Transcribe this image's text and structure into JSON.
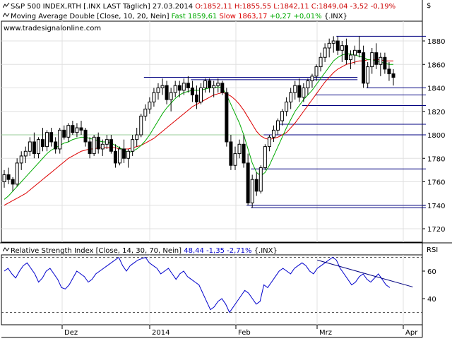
{
  "header": {
    "line1": {
      "name": "S&P 500 INDEX,RTH [.INX LAST Täglich] 27.03.2014",
      "ohlc": "O:1852,11 H:1855,55 L:1842,11 C:1849,04 -3,52 -0,19%"
    },
    "line2": {
      "name": "Moving Average Double [Close, 10, 20, Nein]",
      "fast": "Fast 1859,61",
      "slow": "Slow 1863,17",
      "change": "+0,27 +0,01%",
      "symbol": "{.INX}"
    },
    "website": "www.tradesignalonline.com",
    "currency": "$",
    "rsi_line": {
      "name": "Relative Strength Index [Close, 14, 30, 70, Nein]",
      "value": "48,44",
      "change": "-1,35 -2,71%",
      "symbol": "{.INX}"
    },
    "rsi_axis_label": "RSI"
  },
  "colors": {
    "fast_ma": "#00aa00",
    "slow_ma": "#dd0000",
    "rsi": "#0000cc",
    "candle": "#000000",
    "support_lines": "#000080",
    "trend_line": "#000080",
    "grid": "#e0e0e0",
    "ref_line_1800": "#99cc99",
    "ohlc_text": "#cc0000",
    "rsi_text": "#0000cc"
  },
  "icons": {
    "price_pane": "stepped-line-icon",
    "ma_pane": "line-icon",
    "rsi_pane": "line-icon"
  },
  "chart_data": [
    {
      "type": "candlestick",
      "title": "S&P 500 INDEX,RTH [.INX LAST Täglich] 27.03.2014",
      "x_ticks": [
        "Dez",
        "2014",
        "Feb",
        "Mrz",
        "Apr"
      ],
      "y_ticks": [
        1720,
        1740,
        1760,
        1780,
        1800,
        1820,
        1840,
        1860,
        1880
      ],
      "ylim": [
        1712,
        1890
      ],
      "grid": true,
      "reference_line": 1800,
      "candles": [
        [
          1760,
          1770,
          1755,
          1766
        ],
        [
          1766,
          1772,
          1758,
          1762
        ],
        [
          1762,
          1764,
          1752,
          1758
        ],
        [
          1758,
          1780,
          1756,
          1776
        ],
        [
          1776,
          1786,
          1770,
          1782
        ],
        [
          1782,
          1790,
          1776,
          1786
        ],
        [
          1786,
          1798,
          1782,
          1794
        ],
        [
          1794,
          1802,
          1780,
          1784
        ],
        [
          1784,
          1798,
          1780,
          1796
        ],
        [
          1796,
          1806,
          1786,
          1790
        ],
        [
          1790,
          1804,
          1786,
          1802
        ],
        [
          1802,
          1806,
          1790,
          1794
        ],
        [
          1794,
          1798,
          1784,
          1788
        ],
        [
          1788,
          1806,
          1784,
          1804
        ],
        [
          1804,
          1808,
          1796,
          1798
        ],
        [
          1798,
          1810,
          1794,
          1808
        ],
        [
          1808,
          1812,
          1800,
          1802
        ],
        [
          1802,
          1810,
          1798,
          1806
        ],
        [
          1806,
          1812,
          1800,
          1804
        ],
        [
          1804,
          1806,
          1790,
          1794
        ],
        [
          1794,
          1798,
          1780,
          1784
        ],
        [
          1784,
          1800,
          1782,
          1798
        ],
        [
          1798,
          1802,
          1784,
          1788
        ],
        [
          1788,
          1796,
          1782,
          1792
        ],
        [
          1792,
          1800,
          1788,
          1796
        ],
        [
          1796,
          1800,
          1784,
          1786
        ],
        [
          1786,
          1792,
          1772,
          1776
        ],
        [
          1776,
          1790,
          1774,
          1788
        ],
        [
          1788,
          1796,
          1776,
          1780
        ],
        [
          1780,
          1788,
          1772,
          1786
        ],
        [
          1786,
          1800,
          1782,
          1796
        ],
        [
          1796,
          1806,
          1790,
          1800
        ],
        [
          1800,
          1818,
          1798,
          1816
        ],
        [
          1816,
          1826,
          1812,
          1822
        ],
        [
          1822,
          1832,
          1818,
          1828
        ],
        [
          1828,
          1840,
          1824,
          1836
        ],
        [
          1836,
          1844,
          1830,
          1840
        ],
        [
          1840,
          1848,
          1834,
          1842
        ],
        [
          1842,
          1846,
          1826,
          1830
        ],
        [
          1830,
          1840,
          1820,
          1836
        ],
        [
          1836,
          1846,
          1832,
          1842
        ],
        [
          1842,
          1846,
          1832,
          1838
        ],
        [
          1838,
          1848,
          1834,
          1844
        ],
        [
          1844,
          1850,
          1836,
          1840
        ],
        [
          1840,
          1846,
          1828,
          1834
        ],
        [
          1834,
          1842,
          1822,
          1828
        ],
        [
          1828,
          1844,
          1826,
          1840
        ],
        [
          1840,
          1848,
          1836,
          1846
        ],
        [
          1846,
          1848,
          1836,
          1840
        ],
        [
          1840,
          1846,
          1832,
          1842
        ],
        [
          1842,
          1848,
          1836,
          1844
        ],
        [
          1844,
          1846,
          1834,
          1836
        ],
        [
          1836,
          1840,
          1790,
          1794
        ],
        [
          1794,
          1800,
          1770,
          1774
        ],
        [
          1774,
          1790,
          1770,
          1784
        ],
        [
          1784,
          1796,
          1780,
          1792
        ],
        [
          1792,
          1800,
          1772,
          1776
        ],
        [
          1776,
          1784,
          1740,
          1742
        ],
        [
          1742,
          1766,
          1738,
          1762
        ],
        [
          1762,
          1768,
          1748,
          1752
        ],
        [
          1752,
          1774,
          1750,
          1772
        ],
        [
          1772,
          1792,
          1770,
          1790
        ],
        [
          1790,
          1800,
          1786,
          1798
        ],
        [
          1798,
          1808,
          1794,
          1804
        ],
        [
          1804,
          1814,
          1800,
          1812
        ],
        [
          1812,
          1822,
          1808,
          1820
        ],
        [
          1820,
          1832,
          1816,
          1828
        ],
        [
          1828,
          1840,
          1822,
          1836
        ],
        [
          1836,
          1846,
          1830,
          1842
        ],
        [
          1842,
          1848,
          1828,
          1832
        ],
        [
          1832,
          1844,
          1828,
          1840
        ],
        [
          1840,
          1848,
          1834,
          1846
        ],
        [
          1846,
          1852,
          1840,
          1850
        ],
        [
          1850,
          1860,
          1846,
          1858
        ],
        [
          1858,
          1870,
          1854,
          1866
        ],
        [
          1866,
          1878,
          1862,
          1874
        ],
        [
          1874,
          1882,
          1866,
          1878
        ],
        [
          1878,
          1884,
          1870,
          1880
        ],
        [
          1880,
          1884,
          1868,
          1872
        ],
        [
          1872,
          1880,
          1862,
          1876
        ],
        [
          1876,
          1882,
          1860,
          1864
        ],
        [
          1864,
          1872,
          1856,
          1868
        ],
        [
          1868,
          1876,
          1860,
          1872
        ],
        [
          1872,
          1884,
          1866,
          1870
        ],
        [
          1870,
          1876,
          1840,
          1844
        ],
        [
          1844,
          1862,
          1840,
          1858
        ],
        [
          1858,
          1874,
          1852,
          1870
        ],
        [
          1870,
          1878,
          1856,
          1860
        ],
        [
          1860,
          1870,
          1850,
          1866
        ],
        [
          1866,
          1870,
          1852,
          1856
        ],
        [
          1856,
          1862,
          1846,
          1852
        ],
        [
          1852,
          1856,
          1842,
          1849
        ]
      ],
      "series": [
        {
          "name": "Fast",
          "period": 10,
          "values": [
            1745,
            1748,
            1752,
            1756,
            1760,
            1764,
            1768,
            1772,
            1776,
            1780,
            1784,
            1787,
            1789,
            1791,
            1793,
            1794,
            1796,
            1797,
            1798,
            1798,
            1797,
            1796,
            1795,
            1794,
            1794,
            1793,
            1791,
            1789,
            1787,
            1785,
            1786,
            1788,
            1791,
            1795,
            1800,
            1806,
            1812,
            1818,
            1823,
            1827,
            1831,
            1834,
            1836,
            1837,
            1838,
            1838,
            1838,
            1839,
            1840,
            1840,
            1841,
            1840,
            1834,
            1826,
            1818,
            1810,
            1800,
            1788,
            1776,
            1768,
            1765,
            1768,
            1774,
            1782,
            1790,
            1798,
            1806,
            1813,
            1820,
            1825,
            1830,
            1834,
            1838,
            1843,
            1848,
            1853,
            1858,
            1863,
            1866,
            1868,
            1869,
            1869,
            1868,
            1867,
            1866,
            1864,
            1864,
            1863,
            1862,
            1861,
            1860,
            1860
          ]
        },
        {
          "name": "Slow",
          "period": 20,
          "values": [
            1740,
            1742,
            1744,
            1746,
            1748,
            1750,
            1753,
            1756,
            1759,
            1762,
            1765,
            1768,
            1771,
            1774,
            1777,
            1780,
            1782,
            1784,
            1786,
            1787,
            1788,
            1788,
            1789,
            1789,
            1789,
            1789,
            1789,
            1788,
            1788,
            1788,
            1789,
            1790,
            1791,
            1793,
            1795,
            1797,
            1800,
            1803,
            1806,
            1809,
            1812,
            1815,
            1818,
            1821,
            1824,
            1826,
            1828,
            1830,
            1832,
            1834,
            1835,
            1836,
            1835,
            1833,
            1830,
            1826,
            1821,
            1815,
            1809,
            1803,
            1799,
            1797,
            1796,
            1797,
            1798,
            1800,
            1802,
            1806,
            1810,
            1815,
            1820,
            1825,
            1830,
            1835,
            1840,
            1845,
            1849,
            1853,
            1856,
            1858,
            1860,
            1861,
            1862,
            1863,
            1863,
            1864,
            1864,
            1864,
            1864,
            1863,
            1863,
            1863
          ]
        }
      ],
      "support_levels": [
        {
          "value": 1884,
          "from_index": 78,
          "to_index": 92
        },
        {
          "value": 1849,
          "from_index": 33,
          "to_index": 76
        },
        {
          "value": 1847,
          "from_index": 44,
          "to_index": 76
        },
        {
          "value": 1840,
          "from_index": 85,
          "to_index": 92
        },
        {
          "value": 1834,
          "from_index": 73,
          "to_index": 92
        },
        {
          "value": 1825,
          "from_index": 70,
          "to_index": 92
        },
        {
          "value": 1809,
          "from_index": 64,
          "to_index": 92
        },
        {
          "value": 1800,
          "from_index": 61,
          "to_index": 92
        },
        {
          "value": 1771,
          "from_index": 58,
          "to_index": 92
        },
        {
          "value": 1740,
          "from_index": 57,
          "to_index": 92
        },
        {
          "value": 1738,
          "from_index": 58,
          "to_index": 92
        }
      ]
    },
    {
      "type": "line",
      "title": "Relative Strength Index [Close, 14, 30, 70, Nein]",
      "y_ticks": [
        40,
        60
      ],
      "ylim": [
        25,
        82
      ],
      "reference_levels": [
        30,
        70
      ],
      "grid": true,
      "series": [
        {
          "name": "Relative Strength Index",
          "values": [
            60,
            62,
            58,
            55,
            60,
            64,
            66,
            62,
            58,
            52,
            55,
            60,
            62,
            58,
            54,
            48,
            47,
            50,
            55,
            60,
            58,
            56,
            52,
            54,
            58,
            60,
            62,
            64,
            66,
            68,
            70,
            64,
            60,
            64,
            66,
            68,
            69,
            70,
            66,
            64,
            62,
            58,
            60,
            62,
            58,
            54,
            58,
            60,
            56,
            54,
            52,
            50,
            44,
            38,
            32,
            34,
            38,
            40,
            36,
            30,
            34,
            38,
            42,
            46,
            44,
            40,
            36,
            38,
            50,
            48,
            52,
            56,
            60,
            62,
            60,
            58,
            62,
            64,
            66,
            64,
            60,
            58,
            62,
            64,
            66,
            68,
            70,
            68,
            62,
            58,
            54,
            50,
            52,
            56,
            58,
            54,
            52,
            55,
            58,
            54,
            50,
            48
          ]
        }
      ],
      "trend_line": {
        "from": [
          82,
          68
        ],
        "to": [
          107,
          48.5
        ]
      }
    }
  ]
}
